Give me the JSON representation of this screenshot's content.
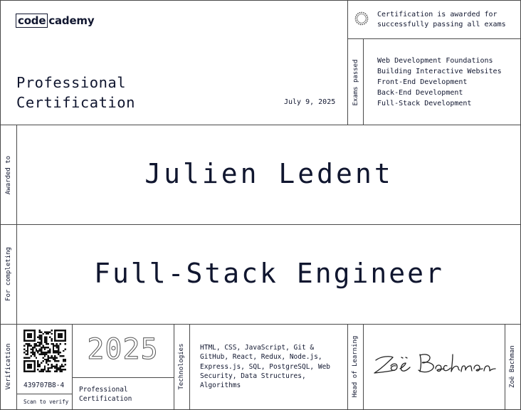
{
  "brand": {
    "logo_box": "code",
    "logo_rest": "cademy"
  },
  "certificate": {
    "title_line1": "Professional",
    "title_line2": "Certification",
    "date": "July 9, 2025",
    "awarded_note_line1": "Certification is awarded for",
    "awarded_note_line2": "successfully passing all exams",
    "exams_label": "Exams passed",
    "exams": [
      "Web Development Foundations",
      "Building Interactive Websites",
      "Front-End Development",
      "Back-End Development",
      "Full-Stack Development"
    ],
    "awarded_to_label": "Awarded to",
    "recipient": "Julien Ledent",
    "for_completing_label": "For completing",
    "program": "Full-Stack Engineer"
  },
  "footer": {
    "verification_label": "Verification",
    "verification_code": "439707B8-4",
    "scan_label": "Scan to verify",
    "year": "2025",
    "cert_type_line1": "Professional",
    "cert_type_line2": "Certification",
    "technologies_label": "Technologies",
    "technologies_lines": [
      "HTML, CSS, JavaScript, Git &",
      "GitHub, React, Redux, Node.js,",
      "Express.js, SQL, PostgreSQL, Web",
      "Security, Data Structures,",
      "Algorithms"
    ],
    "head_label": "Head of Learning",
    "signer": "Zoë Bachman",
    "signature_alt": "Zoë Bachman"
  },
  "colors": {
    "ink": "#10162f",
    "rule": "#4a4a4a"
  },
  "icons": {
    "seal": "seal-icon",
    "qr": "qr-code-icon"
  }
}
